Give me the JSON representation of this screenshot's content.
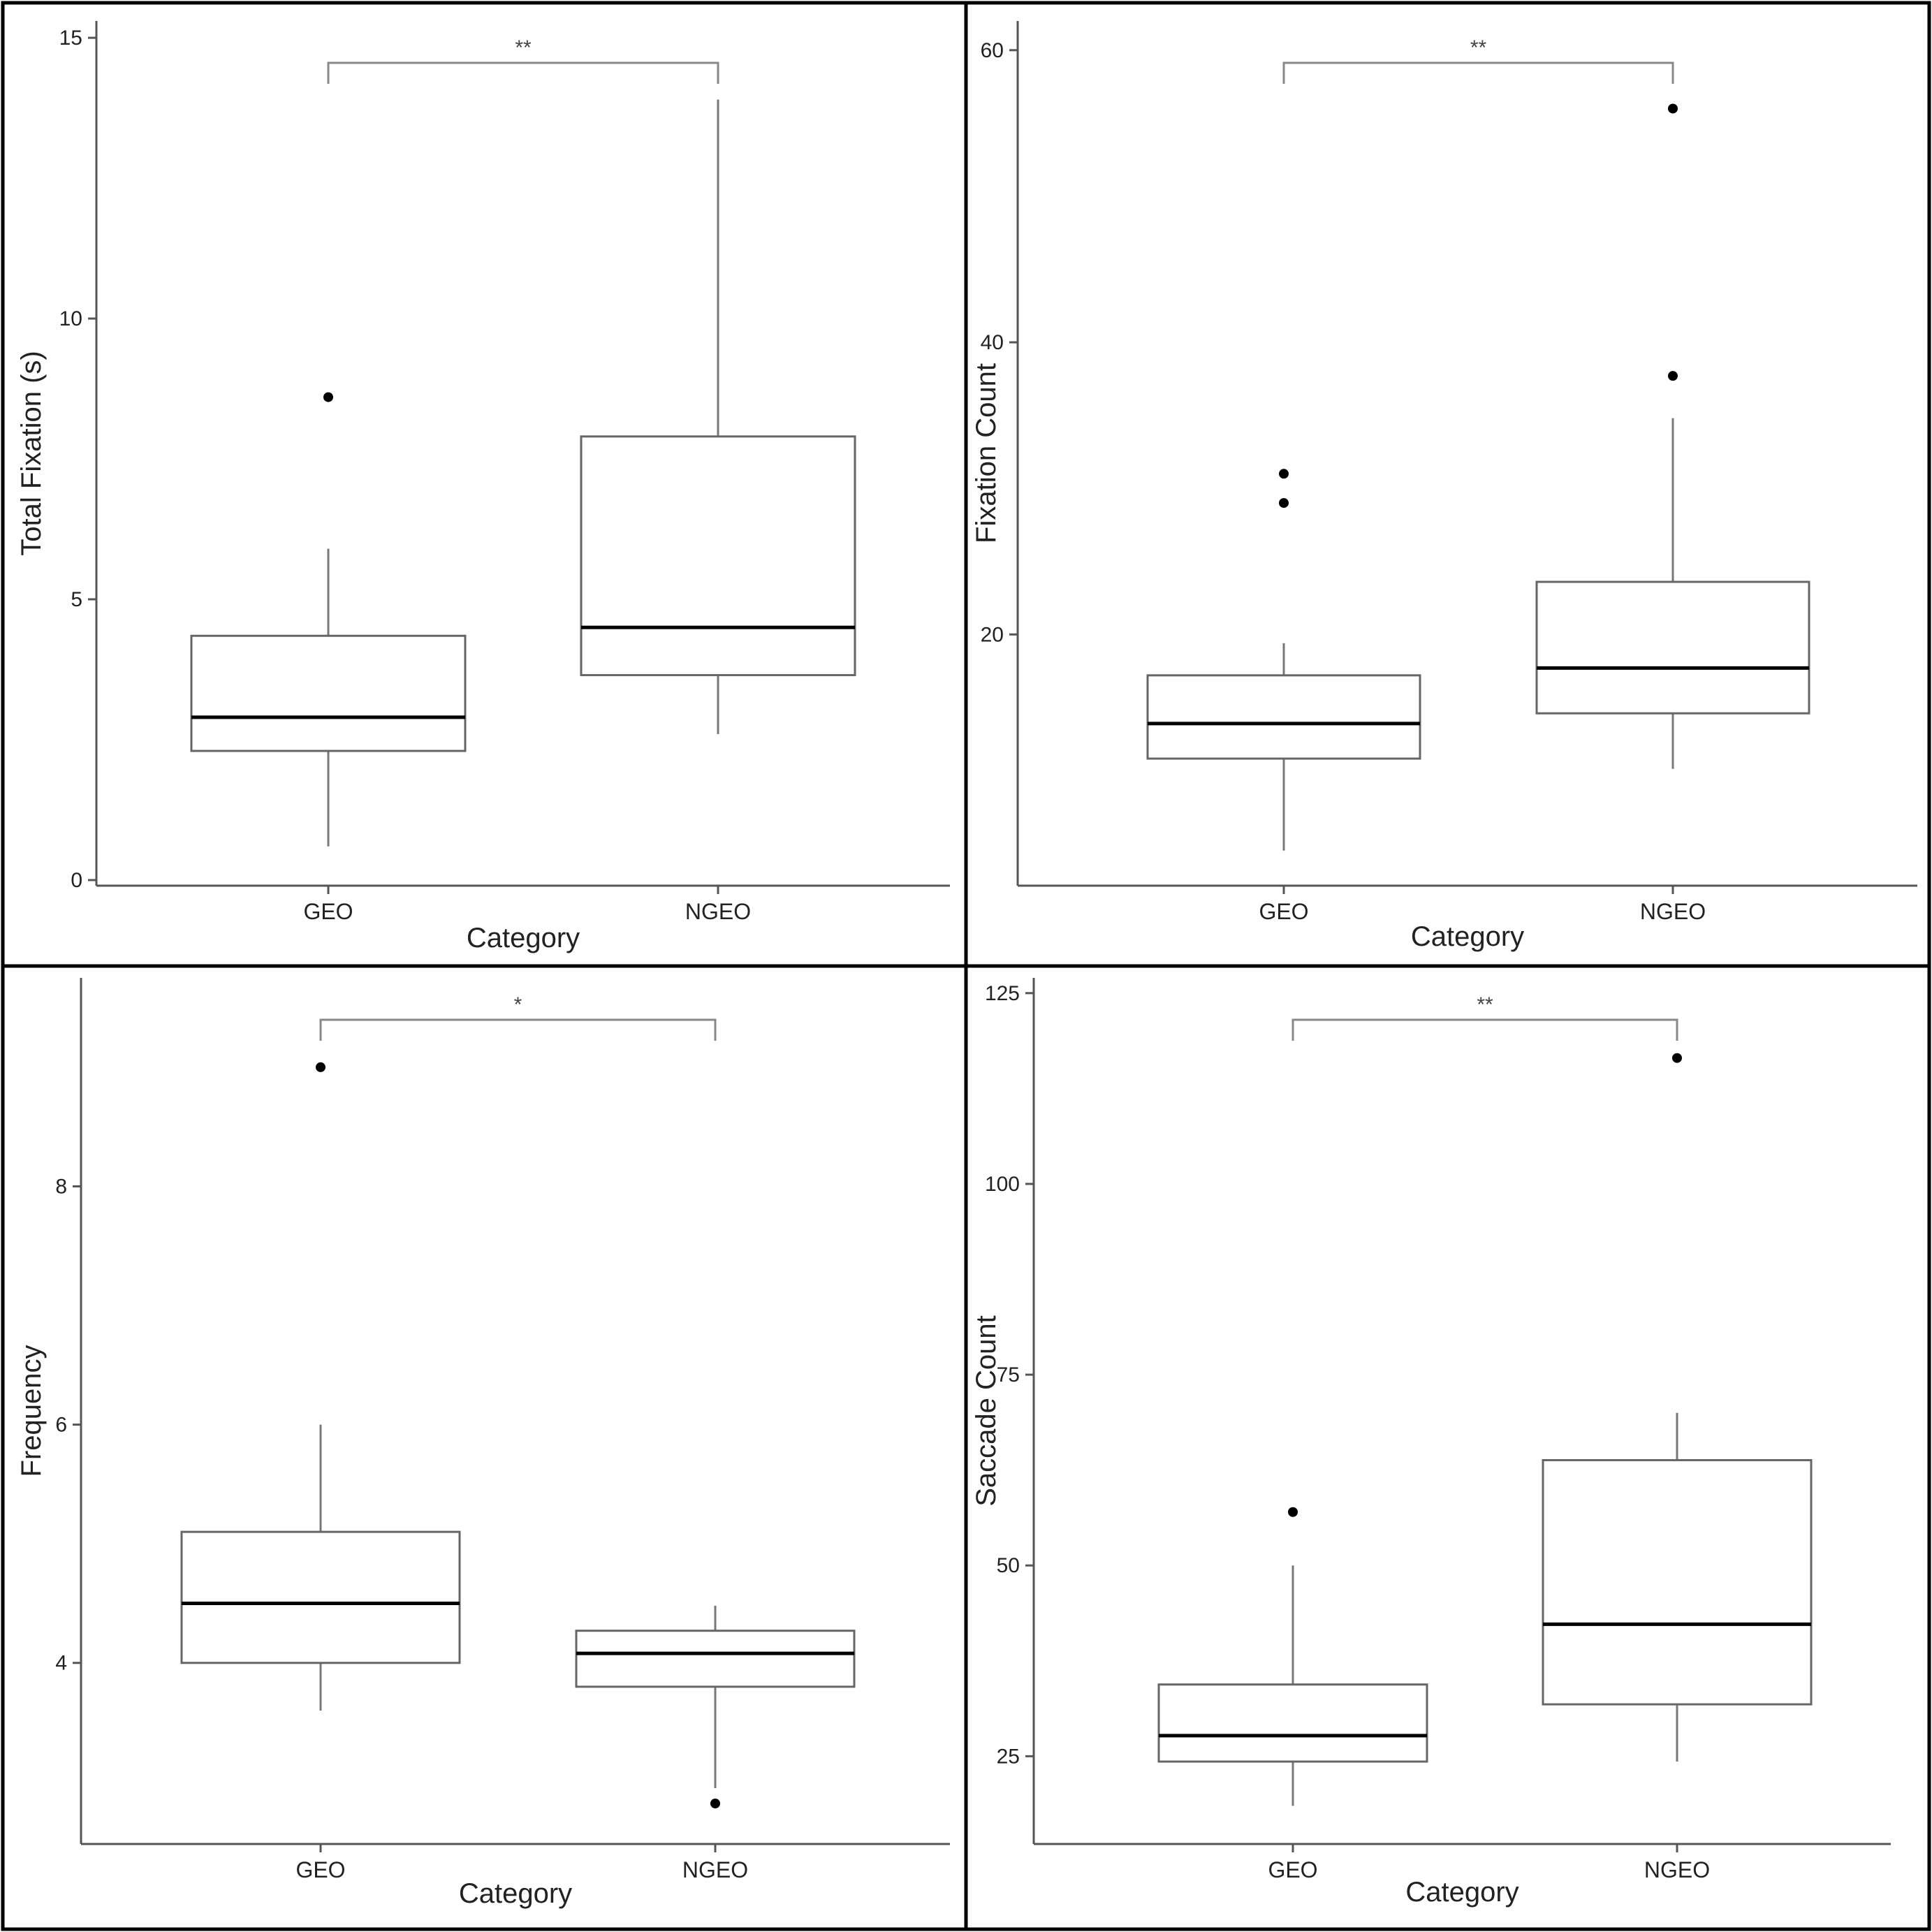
{
  "colors": {
    "box_outline": "#666666",
    "median": "#000000",
    "whisker": "#777777",
    "outlier": "#000000",
    "axis": "#555555",
    "bracket": "#888888",
    "frame": "#000000",
    "background": "#ffffff"
  },
  "chart_data": [
    {
      "type": "box",
      "categories": [
        "GEO",
        "NGEO"
      ],
      "xlabel": "Category",
      "ylabel": "Total Fixation (s)",
      "ylim": [
        -0.1,
        15.3
      ],
      "yticks": [
        0,
        5,
        10,
        15
      ],
      "boxes": [
        {
          "category": "GEO",
          "min": 0.6,
          "q1": 2.3,
          "median": 2.9,
          "q3": 4.35,
          "max": 5.9,
          "outliers": [
            8.6
          ]
        },
        {
          "category": "NGEO",
          "min": 2.6,
          "q1": 3.65,
          "median": 4.5,
          "q3": 7.9,
          "max": 13.9,
          "outliers": []
        }
      ],
      "significance": "**"
    },
    {
      "type": "box",
      "categories": [
        "GEO",
        "NGEO"
      ],
      "xlabel": "Category",
      "ylabel": "Fixation Count",
      "ylim": [
        2.8,
        62
      ],
      "yticks": [
        20,
        40,
        60
      ],
      "boxes": [
        {
          "category": "GEO",
          "min": 5.2,
          "q1": 11.5,
          "median": 13.9,
          "q3": 17.2,
          "max": 19.4,
          "outliers": [
            29.0,
            31.0
          ]
        },
        {
          "category": "NGEO",
          "min": 10.8,
          "q1": 14.6,
          "median": 17.7,
          "q3": 23.6,
          "max": 34.8,
          "outliers": [
            37.7,
            56.0
          ]
        }
      ],
      "significance": "**"
    },
    {
      "type": "box",
      "categories": [
        "GEO",
        "NGEO"
      ],
      "xlabel": "Category",
      "ylabel": "Frequency",
      "ylim": [
        2.48,
        9.75
      ],
      "yticks": [
        4,
        6,
        8
      ],
      "boxes": [
        {
          "category": "GEO",
          "min": 3.6,
          "q1": 4.0,
          "median": 4.5,
          "q3": 5.1,
          "max": 6.0,
          "outliers": [
            9.0
          ]
        },
        {
          "category": "NGEO",
          "min": 2.95,
          "q1": 3.8,
          "median": 4.08,
          "q3": 4.27,
          "max": 4.48,
          "outliers": [
            2.82
          ]
        }
      ],
      "significance": "*"
    },
    {
      "type": "box",
      "categories": [
        "GEO",
        "NGEO"
      ],
      "xlabel": "Category",
      "ylabel": "Saccade Count",
      "ylim": [
        13.5,
        127
      ],
      "yticks": [
        25,
        50,
        75,
        100,
        125
      ],
      "boxes": [
        {
          "category": "GEO",
          "min": 18.5,
          "q1": 24.3,
          "median": 27.7,
          "q3": 34.4,
          "max": 50.0,
          "outliers": [
            57.0
          ]
        },
        {
          "category": "NGEO",
          "min": 24.3,
          "q1": 31.8,
          "median": 42.3,
          "q3": 63.8,
          "max": 70.0,
          "outliers": [
            116.5
          ]
        }
      ],
      "significance": "**"
    }
  ]
}
